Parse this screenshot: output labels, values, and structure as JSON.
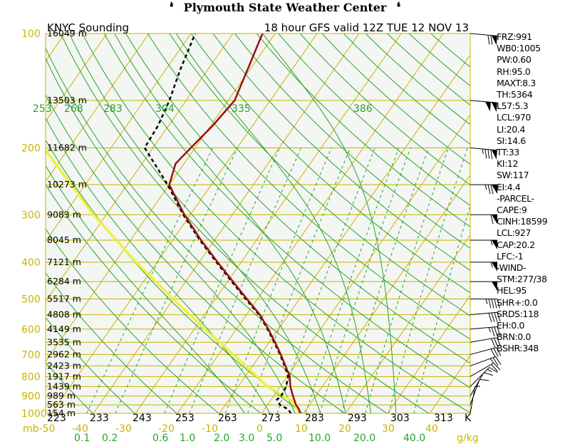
{
  "banner": {
    "title": "Plymouth State Weather Center"
  },
  "chart_data": {
    "type": "line",
    "subtype": "skew-T log-P sounding",
    "title_left": "KNYC Sounding",
    "title_right": "18 hour GFS valid 12Z TUE 12 NOV 13",
    "pressure_unit": "mb",
    "temp_unit": "C",
    "theta_unit": "K",
    "mixing_unit": "g/kg",
    "pressure_levels": [
      100,
      200,
      300,
      400,
      500,
      600,
      700,
      800,
      900,
      1000
    ],
    "height_labels": [
      {
        "p": 100,
        "label": "16049 m"
      },
      {
        "p": 150,
        "label": "13503 m"
      },
      {
        "p": 200,
        "label": "11682 m"
      },
      {
        "p": 250,
        "label": "10273 m"
      },
      {
        "p": 300,
        "label": "9083 m"
      },
      {
        "p": 350,
        "label": "8045 m"
      },
      {
        "p": 400,
        "label": "7121 m"
      },
      {
        "p": 450,
        "label": "6284 m"
      },
      {
        "p": 500,
        "label": "5517 m"
      },
      {
        "p": 550,
        "label": "4808 m"
      },
      {
        "p": 600,
        "label": "4149 m"
      },
      {
        "p": 650,
        "label": "3535 m"
      },
      {
        "p": 700,
        "label": "2962 m"
      },
      {
        "p": 750,
        "label": "2423 m"
      },
      {
        "p": 800,
        "label": "1917 m"
      },
      {
        "p": 850,
        "label": "1439 m"
      },
      {
        "p": 900,
        "label": "989 m"
      },
      {
        "p": 950,
        "label": "563 m"
      },
      {
        "p": 1000,
        "label": "154 m"
      }
    ],
    "temp_axis_labels": [
      "mb-50",
      "-40",
      "-30",
      "-20",
      "-10",
      "0",
      "10",
      "20",
      "30",
      "40"
    ],
    "temp_axis_values": [
      -50,
      -40,
      -30,
      -20,
      -10,
      0,
      10,
      20,
      30,
      40
    ],
    "kelvin_labels": [
      "223",
      "233",
      "243",
      "253",
      "263",
      "273",
      "283",
      "293",
      "303",
      "313",
      "K"
    ],
    "theta_labels": [
      "253",
      "268",
      "283",
      "304",
      "335",
      "386"
    ],
    "mixing_ratio_labels": [
      "0.1",
      "0.2",
      "0.6",
      "1.0",
      "2.0",
      "3.0",
      "5.0",
      "10.0",
      "20.0",
      "40.0",
      "g/kg"
    ],
    "mixing_ratio_values": [
      0.1,
      0.2,
      0.6,
      1.0,
      2.0,
      3.0,
      5.0,
      10.0,
      20.0,
      40.0
    ],
    "temperature": [
      {
        "p": 1000,
        "t": 9.2
      },
      {
        "p": 975,
        "t": 8.2
      },
      {
        "p": 950,
        "t": 6.8
      },
      {
        "p": 900,
        "t": 4.6
      },
      {
        "p": 850,
        "t": 2.4
      },
      {
        "p": 800,
        "t": 0.6
      },
      {
        "p": 750,
        "t": -2.2
      },
      {
        "p": 700,
        "t": -5.2
      },
      {
        "p": 650,
        "t": -8.6
      },
      {
        "p": 600,
        "t": -12.4
      },
      {
        "p": 550,
        "t": -16.8
      },
      {
        "p": 500,
        "t": -22.5
      },
      {
        "p": 450,
        "t": -28.7
      },
      {
        "p": 400,
        "t": -35.6
      },
      {
        "p": 350,
        "t": -43.2
      },
      {
        "p": 300,
        "t": -51.4
      },
      {
        "p": 250,
        "t": -60.0
      },
      {
        "p": 220,
        "t": -62.0
      },
      {
        "p": 200,
        "t": -61.0
      },
      {
        "p": 175,
        "t": -59.5
      },
      {
        "p": 150,
        "t": -58.5
      },
      {
        "p": 125,
        "t": -60.5
      },
      {
        "p": 100,
        "t": -63.0
      }
    ],
    "dewpoint": [
      {
        "p": 1000,
        "t": 7.0
      },
      {
        "p": 975,
        "t": 5.6
      },
      {
        "p": 950,
        "t": 3.0
      },
      {
        "p": 920,
        "t": 1.4
      },
      {
        "p": 900,
        "t": 1.8
      },
      {
        "p": 850,
        "t": 1.4
      },
      {
        "p": 800,
        "t": 0.2
      },
      {
        "p": 750,
        "t": -2.4
      },
      {
        "p": 700,
        "t": -5.4
      },
      {
        "p": 650,
        "t": -8.8
      },
      {
        "p": 600,
        "t": -12.6
      },
      {
        "p": 550,
        "t": -17.0
      },
      {
        "p": 500,
        "t": -22.8
      },
      {
        "p": 450,
        "t": -29.0
      },
      {
        "p": 400,
        "t": -35.9
      },
      {
        "p": 350,
        "t": -43.5
      },
      {
        "p": 300,
        "t": -51.7
      },
      {
        "p": 250,
        "t": -60.4
      },
      {
        "p": 200,
        "t": -72.0
      },
      {
        "p": 175,
        "t": -72.5
      },
      {
        "p": 150,
        "t": -74.0
      },
      {
        "p": 125,
        "t": -76.5
      },
      {
        "p": 100,
        "t": -79.0
      }
    ],
    "parcel": [
      {
        "p": 1000,
        "t": 9.2
      },
      {
        "p": 927,
        "t": 5.2
      },
      {
        "p": 850,
        "t": -3.0
      },
      {
        "p": 700,
        "t": -16.5
      },
      {
        "p": 600,
        "t": -27.5
      },
      {
        "p": 500,
        "t": -40.0
      },
      {
        "p": 400,
        "t": -55.0
      },
      {
        "p": 300,
        "t": -73.0
      },
      {
        "p": 200,
        "t": -96.0
      },
      {
        "p": 150,
        "t": -110.0
      },
      {
        "p": 115,
        "t": -122.0
      }
    ],
    "winds": [
      {
        "p": 100,
        "dir": 275,
        "kt": 70
      },
      {
        "p": 150,
        "dir": 275,
        "kt": 100
      },
      {
        "p": 200,
        "dir": 275,
        "kt": 85
      },
      {
        "p": 250,
        "dir": 270,
        "kt": 75
      },
      {
        "p": 300,
        "dir": 270,
        "kt": 60
      },
      {
        "p": 350,
        "dir": 270,
        "kt": 55
      },
      {
        "p": 400,
        "dir": 270,
        "kt": 55
      },
      {
        "p": 450,
        "dir": 270,
        "kt": 50
      },
      {
        "p": 500,
        "dir": 270,
        "kt": 45
      },
      {
        "p": 550,
        "dir": 265,
        "kt": 40
      },
      {
        "p": 600,
        "dir": 265,
        "kt": 35
      },
      {
        "p": 650,
        "dir": 260,
        "kt": 30
      },
      {
        "p": 700,
        "dir": 255,
        "kt": 30
      },
      {
        "p": 750,
        "dir": 250,
        "kt": 25
      },
      {
        "p": 800,
        "dir": 240,
        "kt": 20
      },
      {
        "p": 850,
        "dir": 225,
        "kt": 15
      },
      {
        "p": 900,
        "dir": 210,
        "kt": 10
      },
      {
        "p": 950,
        "dir": 200,
        "kt": 10
      },
      {
        "p": 1000,
        "dir": 190,
        "kt": 5
      }
    ],
    "colors": {
      "isobar": "#c8b400",
      "isotherm": "#c8b400",
      "dry_adiabat": "#2aa12a",
      "moist_adiabat": "#2aa12a",
      "mixing_ratio": "#2aa12a",
      "temperature": "#9a1010",
      "dewpoint": "#000000",
      "parcel": "#f0f040",
      "background": "#f3f6f3"
    }
  },
  "indices": [
    "FRZ:991",
    "WB0:1005",
    "PW:0.60",
    "RH:95.0",
    "MAXT:8.3",
    "TH:5364",
    "L57:5.3",
    "LCL:970",
    "LI:20.4",
    "SI:14.6",
    "TT:33",
    "KI:12",
    "SW:117",
    "EI:4.4",
    "-PARCEL-",
    "CAPE:9",
    "CINH:18599",
    "LCL:927",
    "CAP:20.2",
    "LFC:-1",
    "-WIND-",
    "STM:277/38",
    "HEL:95",
    "SHR+:0.0",
    "SRDS:118",
    "EH:0.0",
    "BRN:0.0",
    "BSHR:348"
  ]
}
